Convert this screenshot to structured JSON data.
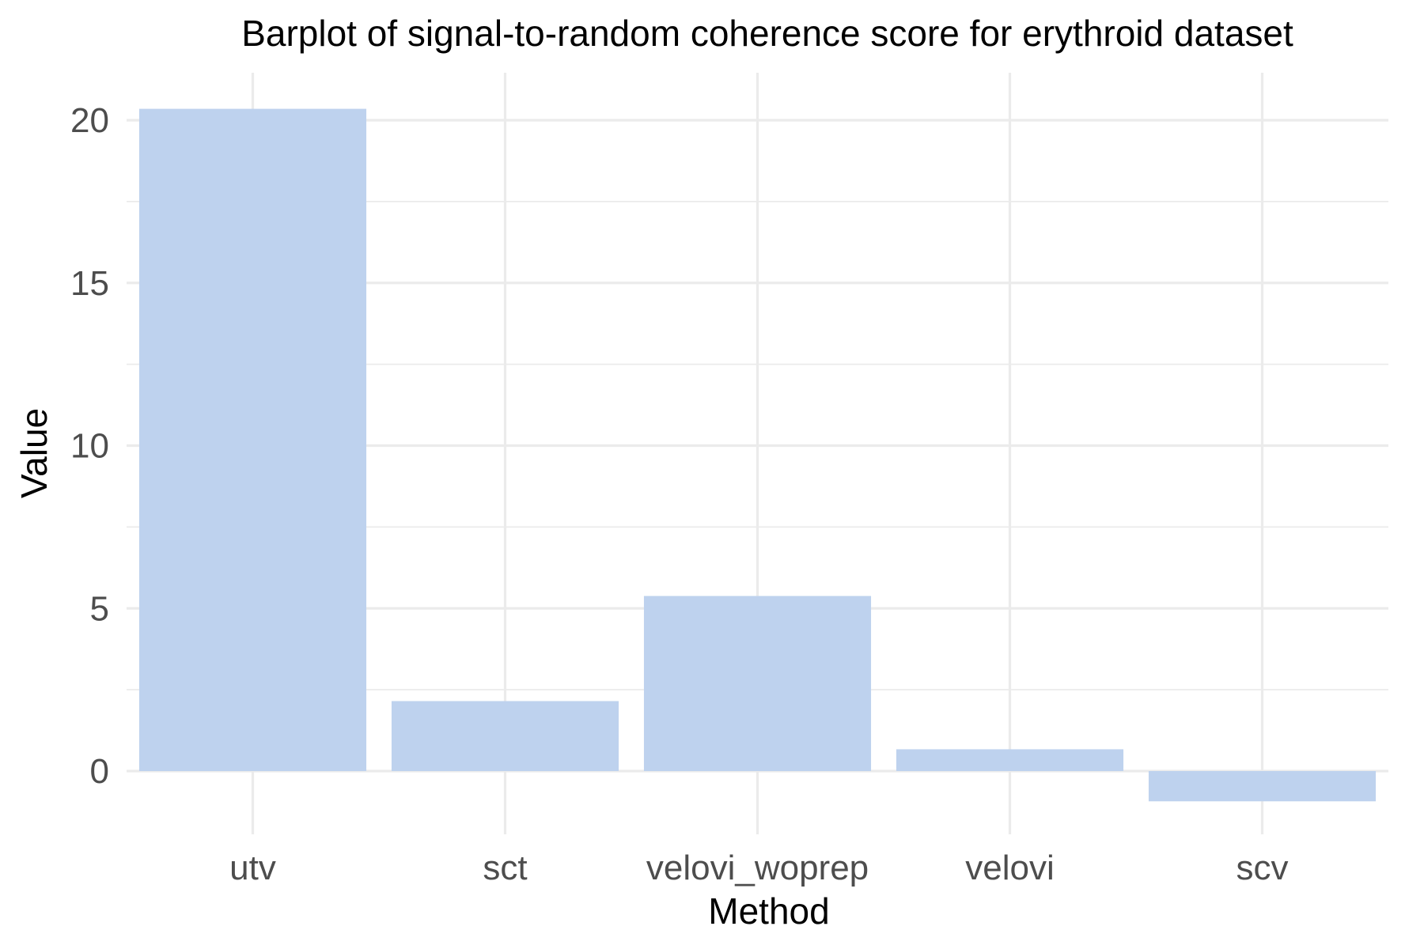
{
  "chart_data": {
    "type": "bar",
    "title": "Barplot of signal-to-random coherence score for erythroid dataset",
    "xlabel": "Method",
    "ylabel": "Value",
    "categories": [
      "utv",
      "sct",
      "velovi_woprep",
      "velovi",
      "scv"
    ],
    "values": [
      20.35,
      2.15,
      5.38,
      0.67,
      -0.93
    ],
    "ylim": [
      -1.7,
      21.3
    ],
    "y_ticks": [
      0,
      5,
      10,
      15,
      20
    ],
    "y_minor_ticks": [
      2.5,
      7.5,
      12.5,
      17.5
    ],
    "grid": true,
    "legend": "none",
    "bar_color": "#bed2ee",
    "grid_color": "#ebebeb"
  }
}
